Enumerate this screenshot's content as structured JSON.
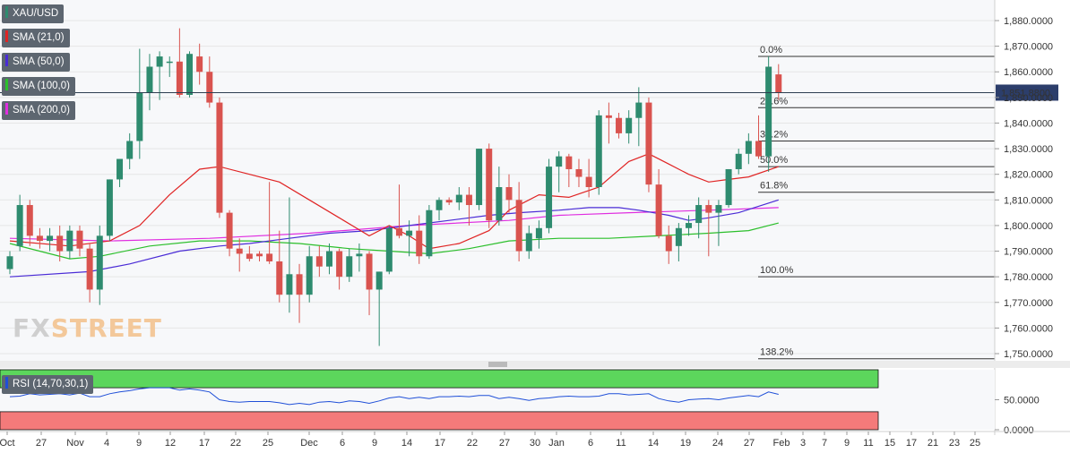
{
  "symbol": "XAU/USD",
  "indicators": [
    {
      "label": "SMA (21,0)",
      "color": "#e02424"
    },
    {
      "label": "SMA (50,0)",
      "color": "#4a2bd6"
    },
    {
      "label": "SMA (100,0)",
      "color": "#2bbf2b"
    },
    {
      "label": "SMA (200,0)",
      "color": "#e02ee0"
    }
  ],
  "rsi_label": "RSI (14,70,30,1)",
  "watermark": {
    "part1": "FX",
    "part2": "STREET"
  },
  "current_price_label": "1,851.8800",
  "colors": {
    "up": "#2e8b6f",
    "down": "#d9534f",
    "sma21": "#e02424",
    "sma50": "#4a2bd6",
    "sma100": "#2bbf2b",
    "sma200": "#e02ee0",
    "rsi": "#1f4fd8",
    "overbought": "#5cd65c",
    "oversold": "#f47a7a"
  },
  "chart_data": {
    "type": "candlestick",
    "title": "XAU/USD",
    "ylim": [
      1745,
      1885
    ],
    "y_ticks": [
      "1,880.0000",
      "1,870.0000",
      "1,860.0000",
      "1,850.0000",
      "1,840.0000",
      "1,830.0000",
      "1,820.0000",
      "1,810.0000",
      "1,800.0000",
      "1,790.0000",
      "1,780.0000",
      "1,770.0000",
      "1,760.0000",
      "1,750.0000"
    ],
    "x_ticks": [
      "Oct",
      "27",
      "Nov",
      "4",
      "9",
      "12",
      "17",
      "22",
      "25",
      "Dec",
      "6",
      "9",
      "14",
      "17",
      "22",
      "27",
      "30",
      "Jan",
      "6",
      "11",
      "14",
      "19",
      "24",
      "27",
      "Feb",
      "3",
      "7",
      "9",
      "11",
      "15",
      "17",
      "21",
      "23",
      "25"
    ],
    "candles": [
      {
        "o": 1783,
        "h": 1790,
        "l": 1781,
        "c": 1788
      },
      {
        "o": 1792,
        "h": 1812,
        "l": 1790,
        "c": 1808
      },
      {
        "o": 1808,
        "h": 1810,
        "l": 1792,
        "c": 1796
      },
      {
        "o": 1796,
        "h": 1799,
        "l": 1791,
        "c": 1794
      },
      {
        "o": 1794,
        "h": 1799,
        "l": 1790,
        "c": 1796
      },
      {
        "o": 1796,
        "h": 1800,
        "l": 1786,
        "c": 1790
      },
      {
        "o": 1790,
        "h": 1800,
        "l": 1787,
        "c": 1798
      },
      {
        "o": 1798,
        "h": 1800,
        "l": 1788,
        "c": 1791
      },
      {
        "o": 1791,
        "h": 1793,
        "l": 1770,
        "c": 1775
      },
      {
        "o": 1775,
        "h": 1800,
        "l": 1769,
        "c": 1796
      },
      {
        "o": 1796,
        "h": 1818,
        "l": 1794,
        "c": 1818
      },
      {
        "o": 1818,
        "h": 1826,
        "l": 1815,
        "c": 1826
      },
      {
        "o": 1826,
        "h": 1836,
        "l": 1822,
        "c": 1833
      },
      {
        "o": 1833,
        "h": 1869,
        "l": 1826,
        "c": 1852
      },
      {
        "o": 1852,
        "h": 1867,
        "l": 1845,
        "c": 1862
      },
      {
        "o": 1862,
        "h": 1868,
        "l": 1849,
        "c": 1866
      },
      {
        "o": 1864,
        "h": 1866,
        "l": 1858,
        "c": 1864
      },
      {
        "o": 1864,
        "h": 1877,
        "l": 1850,
        "c": 1851
      },
      {
        "o": 1851,
        "h": 1868,
        "l": 1850,
        "c": 1867
      },
      {
        "o": 1866,
        "h": 1871,
        "l": 1855,
        "c": 1860
      },
      {
        "o": 1860,
        "h": 1866,
        "l": 1846,
        "c": 1848
      },
      {
        "o": 1848,
        "h": 1850,
        "l": 1803,
        "c": 1805
      },
      {
        "o": 1805,
        "h": 1806,
        "l": 1788,
        "c": 1791
      },
      {
        "o": 1791,
        "h": 1795,
        "l": 1782,
        "c": 1789
      },
      {
        "o": 1789,
        "h": 1792,
        "l": 1786,
        "c": 1787
      },
      {
        "o": 1789,
        "h": 1790,
        "l": 1786,
        "c": 1788
      },
      {
        "o": 1789,
        "h": 1817,
        "l": 1785,
        "c": 1786
      },
      {
        "o": 1786,
        "h": 1798,
        "l": 1770,
        "c": 1773
      },
      {
        "o": 1773,
        "h": 1811,
        "l": 1766,
        "c": 1781
      },
      {
        "o": 1781,
        "h": 1785,
        "l": 1762,
        "c": 1773
      },
      {
        "o": 1773,
        "h": 1792,
        "l": 1770,
        "c": 1788
      },
      {
        "o": 1788,
        "h": 1792,
        "l": 1780,
        "c": 1784
      },
      {
        "o": 1784,
        "h": 1793,
        "l": 1781,
        "c": 1790
      },
      {
        "o": 1790,
        "h": 1791,
        "l": 1775,
        "c": 1780
      },
      {
        "o": 1780,
        "h": 1791,
        "l": 1778,
        "c": 1788
      },
      {
        "o": 1788,
        "h": 1793,
        "l": 1782,
        "c": 1789
      },
      {
        "o": 1789,
        "h": 1790,
        "l": 1765,
        "c": 1775
      },
      {
        "o": 1775,
        "h": 1782,
        "l": 1753,
        "c": 1782
      },
      {
        "o": 1782,
        "h": 1800,
        "l": 1781,
        "c": 1799
      },
      {
        "o": 1799,
        "h": 1816,
        "l": 1795,
        "c": 1796
      },
      {
        "o": 1796,
        "h": 1802,
        "l": 1788,
        "c": 1798
      },
      {
        "o": 1798,
        "h": 1804,
        "l": 1785,
        "c": 1788
      },
      {
        "o": 1788,
        "h": 1808,
        "l": 1787,
        "c": 1806
      },
      {
        "o": 1806,
        "h": 1811,
        "l": 1802,
        "c": 1810
      },
      {
        "o": 1810,
        "h": 1811,
        "l": 1808,
        "c": 1809
      },
      {
        "o": 1809,
        "h": 1815,
        "l": 1806,
        "c": 1812
      },
      {
        "o": 1812,
        "h": 1815,
        "l": 1800,
        "c": 1808
      },
      {
        "o": 1808,
        "h": 1830,
        "l": 1806,
        "c": 1830
      },
      {
        "o": 1830,
        "h": 1832,
        "l": 1799,
        "c": 1802
      },
      {
        "o": 1802,
        "h": 1823,
        "l": 1800,
        "c": 1815
      },
      {
        "o": 1815,
        "h": 1820,
        "l": 1805,
        "c": 1810
      },
      {
        "o": 1810,
        "h": 1817,
        "l": 1786,
        "c": 1790
      },
      {
        "o": 1790,
        "h": 1800,
        "l": 1787,
        "c": 1797
      },
      {
        "o": 1795,
        "h": 1802,
        "l": 1791,
        "c": 1799
      },
      {
        "o": 1799,
        "h": 1826,
        "l": 1797,
        "c": 1823
      },
      {
        "o": 1823,
        "h": 1829,
        "l": 1813,
        "c": 1827
      },
      {
        "o": 1827,
        "h": 1828,
        "l": 1815,
        "c": 1822
      },
      {
        "o": 1822,
        "h": 1826,
        "l": 1815,
        "c": 1819
      },
      {
        "o": 1819,
        "h": 1826,
        "l": 1811,
        "c": 1815
      },
      {
        "o": 1815,
        "h": 1845,
        "l": 1812,
        "c": 1843
      },
      {
        "o": 1843,
        "h": 1848,
        "l": 1832,
        "c": 1842
      },
      {
        "o": 1842,
        "h": 1844,
        "l": 1834,
        "c": 1836
      },
      {
        "o": 1836,
        "h": 1845,
        "l": 1832,
        "c": 1842
      },
      {
        "o": 1842,
        "h": 1854,
        "l": 1831,
        "c": 1848
      },
      {
        "o": 1848,
        "h": 1850,
        "l": 1813,
        "c": 1816
      },
      {
        "o": 1816,
        "h": 1822,
        "l": 1795,
        "c": 1796
      },
      {
        "o": 1796,
        "h": 1800,
        "l": 1785,
        "c": 1790
      },
      {
        "o": 1792,
        "h": 1801,
        "l": 1786,
        "c": 1799
      },
      {
        "o": 1799,
        "h": 1804,
        "l": 1796,
        "c": 1801
      },
      {
        "o": 1801,
        "h": 1811,
        "l": 1795,
        "c": 1808
      },
      {
        "o": 1808,
        "h": 1810,
        "l": 1788,
        "c": 1805
      },
      {
        "o": 1805,
        "h": 1810,
        "l": 1792,
        "c": 1808
      },
      {
        "o": 1808,
        "h": 1822,
        "l": 1807,
        "c": 1822
      },
      {
        "o": 1822,
        "h": 1830,
        "l": 1820,
        "c": 1828
      },
      {
        "o": 1828,
        "h": 1836,
        "l": 1824,
        "c": 1833
      },
      {
        "o": 1833,
        "h": 1843,
        "l": 1826,
        "c": 1827
      },
      {
        "o": 1827,
        "h": 1866,
        "l": 1821,
        "c": 1862
      },
      {
        "o": 1859,
        "h": 1863,
        "l": 1849,
        "c": 1852
      }
    ],
    "sma21": [
      [
        0,
        1794
      ],
      [
        6,
        1792
      ],
      [
        10,
        1794
      ],
      [
        13,
        1800
      ],
      [
        16,
        1812
      ],
      [
        19,
        1822
      ],
      [
        21,
        1823
      ],
      [
        24,
        1820
      ],
      [
        27,
        1817
      ],
      [
        30,
        1810
      ],
      [
        33,
        1803
      ],
      [
        36,
        1796
      ],
      [
        38,
        1800
      ],
      [
        40,
        1796
      ],
      [
        42,
        1791
      ],
      [
        45,
        1793
      ],
      [
        48,
        1798
      ],
      [
        50,
        1806
      ],
      [
        53,
        1812
      ],
      [
        56,
        1811
      ],
      [
        59,
        1815
      ],
      [
        62,
        1825
      ],
      [
        64,
        1828
      ],
      [
        66,
        1824
      ],
      [
        68,
        1820
      ],
      [
        70,
        1817
      ],
      [
        72,
        1818
      ],
      [
        74,
        1819
      ],
      [
        77,
        1823
      ]
    ],
    "sma50": [
      [
        0,
        1780
      ],
      [
        8,
        1782
      ],
      [
        12,
        1785
      ],
      [
        17,
        1790
      ],
      [
        21,
        1792
      ],
      [
        24,
        1793
      ],
      [
        28,
        1795
      ],
      [
        32,
        1797
      ],
      [
        36,
        1798
      ],
      [
        40,
        1800
      ],
      [
        44,
        1802
      ],
      [
        48,
        1804
      ],
      [
        51,
        1805
      ],
      [
        55,
        1806
      ],
      [
        58,
        1807
      ],
      [
        61,
        1807
      ],
      [
        63,
        1806
      ],
      [
        66,
        1804
      ],
      [
        68,
        1802
      ],
      [
        70,
        1803
      ],
      [
        73,
        1805
      ],
      [
        77,
        1810
      ]
    ],
    "sma100": [
      [
        0,
        1793
      ],
      [
        6,
        1787
      ],
      [
        9,
        1788
      ],
      [
        14,
        1792
      ],
      [
        19,
        1794
      ],
      [
        24,
        1794
      ],
      [
        29,
        1793
      ],
      [
        34,
        1791
      ],
      [
        38,
        1790
      ],
      [
        42,
        1789
      ],
      [
        46,
        1791
      ],
      [
        50,
        1794
      ],
      [
        55,
        1795
      ],
      [
        60,
        1795
      ],
      [
        65,
        1796
      ],
      [
        70,
        1797
      ],
      [
        74,
        1798
      ],
      [
        77,
        1801
      ]
    ],
    "sma200": [
      [
        0,
        1795
      ],
      [
        10,
        1794
      ],
      [
        20,
        1795
      ],
      [
        30,
        1797
      ],
      [
        40,
        1800
      ],
      [
        50,
        1802
      ],
      [
        55,
        1804
      ],
      [
        62,
        1805
      ],
      [
        70,
        1806
      ],
      [
        77,
        1807
      ]
    ],
    "fibonacci": [
      {
        "label": "0.0%",
        "value": 1866
      },
      {
        "label": "23.6%",
        "value": 1846
      },
      {
        "label": "38.2%",
        "value": 1833
      },
      {
        "label": "50.0%",
        "value": 1823
      },
      {
        "label": "61.8%",
        "value": 1813
      },
      {
        "label": "100.0%",
        "value": 1780
      },
      {
        "label": "138.2%",
        "value": 1748
      }
    ],
    "current_price": 1851.88,
    "rsi": {
      "ylim": [
        0,
        100
      ],
      "y_ticks": [
        "50.0000",
        "0.0000"
      ],
      "overbought": 70,
      "oversold": 30,
      "values": [
        55,
        56,
        60,
        58,
        59,
        60,
        58,
        61,
        55,
        55,
        60,
        63,
        65,
        68,
        70,
        70,
        70,
        66,
        68,
        66,
        63,
        50,
        47,
        46,
        47,
        47,
        47,
        45,
        42,
        44,
        42,
        46,
        47,
        45,
        48,
        47,
        44,
        48,
        53,
        55,
        52,
        54,
        52,
        55,
        55,
        56,
        55,
        57,
        57,
        52,
        54,
        52,
        49,
        52,
        53,
        55,
        56,
        55,
        55,
        56,
        60,
        60,
        58,
        59,
        60,
        52,
        48,
        46,
        50,
        51,
        52,
        50,
        53,
        55,
        57,
        55,
        63,
        59
      ]
    }
  }
}
